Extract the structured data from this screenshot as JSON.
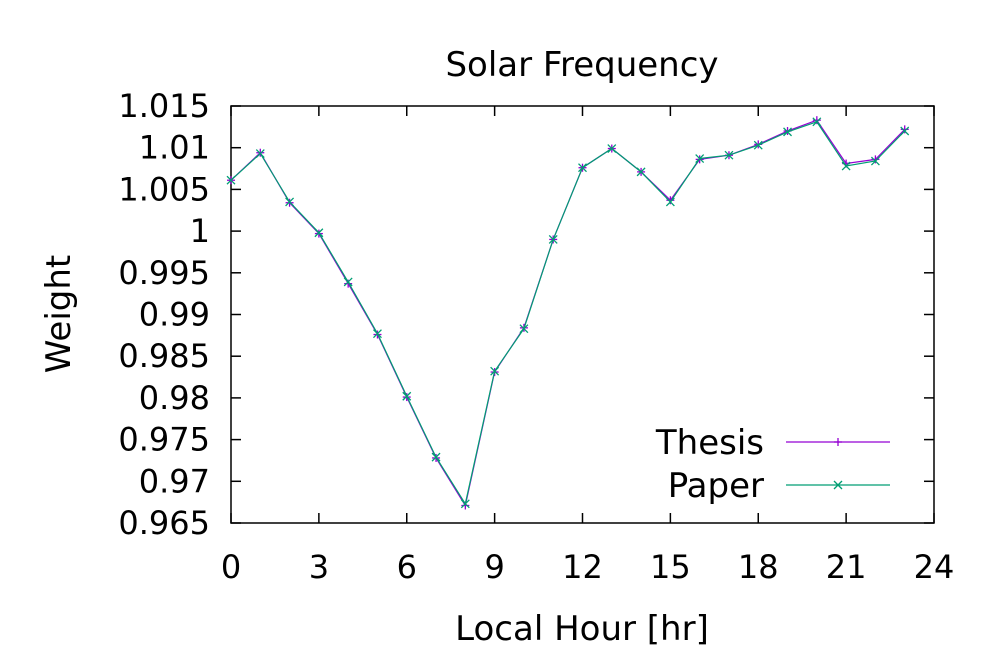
{
  "chart_data": {
    "type": "line",
    "title": "Solar Frequency",
    "xlabel": "Local Hour [hr]",
    "ylabel": "Weight",
    "xlim": [
      0,
      24
    ],
    "ylim": [
      0.965,
      1.015
    ],
    "x_ticks": [
      0,
      3,
      6,
      9,
      12,
      15,
      18,
      21,
      24
    ],
    "y_ticks": [
      0.965,
      0.97,
      0.975,
      0.98,
      0.985,
      0.99,
      0.995,
      1,
      1.005,
      1.01,
      1.015
    ],
    "x_tick_labels": [
      "0",
      "3",
      "6",
      "9",
      "12",
      "15",
      "18",
      "21",
      "24"
    ],
    "y_tick_labels": [
      "0.965",
      "0.97",
      "0.975",
      "0.98",
      "0.985",
      "0.99",
      "0.995",
      "1",
      "1.005",
      "1.01",
      "1.015"
    ],
    "grid": false,
    "legend_position": "bottom-right",
    "x": [
      0,
      1,
      2,
      3,
      4,
      5,
      6,
      7,
      8,
      9,
      10,
      11,
      12,
      13,
      14,
      15,
      16,
      17,
      18,
      19,
      20,
      21,
      22,
      23
    ],
    "series": [
      {
        "name": "Thesis",
        "color": "#9400d3",
        "marker": "plus",
        "values": [
          1.0061,
          1.0094,
          1.0034,
          0.9997,
          0.9937,
          0.9876,
          0.9801,
          0.9728,
          0.9671,
          0.9831,
          0.9884,
          0.999,
          1.0076,
          1.0099,
          1.0071,
          1.0037,
          1.0086,
          1.0091,
          1.0104,
          1.012,
          1.0133,
          1.0081,
          1.0086,
          1.0122
        ]
      },
      {
        "name": "Paper",
        "color": "#009e73",
        "marker": "cross",
        "values": [
          1.0061,
          1.0093,
          1.0035,
          0.9998,
          0.9939,
          0.9877,
          0.9802,
          0.9729,
          0.9673,
          0.9832,
          0.9883,
          0.999,
          1.0076,
          1.0099,
          1.0071,
          1.0035,
          1.0087,
          1.0091,
          1.0103,
          1.0119,
          1.0131,
          1.0078,
          1.0084,
          1.012
        ]
      }
    ]
  }
}
